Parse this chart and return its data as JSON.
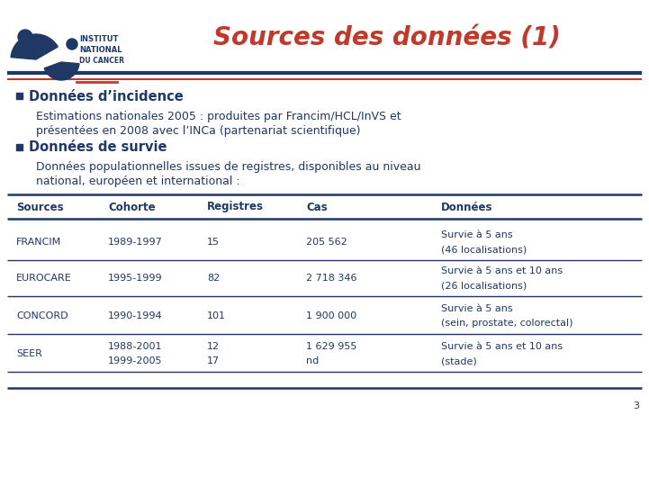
{
  "title": "Sources des données (1)",
  "title_color": "#C0392B",
  "title_fontsize": 20,
  "bg_color": "#FFFFFF",
  "header_line_color1": "#C0392B",
  "header_line_color2": "#1F3864",
  "bullet_color": "#1F3864",
  "bullet_head1": "Données d’incidence",
  "bullet_body1a": "Estimations nationales 2005 : produites par Francim/HCL/InVS et",
  "bullet_body1b": "présentées en 2008 avec l’INCa (partenariat scientifique)",
  "bullet_head2": "Données de survie",
  "bullet_body2a": "Données populationnelles issues de registres, disponibles au niveau",
  "bullet_body2b": "national, européen et international :",
  "table_header": [
    "Sources",
    "Cohorte",
    "Registres",
    "Cas",
    "Données"
  ],
  "table_rows": [
    [
      "FRANCIM",
      "1989-1997",
      "15",
      "205 562",
      "Survie à 5 ans\n(46 localisations)"
    ],
    [
      "EUROCARE",
      "1995-1999",
      "82",
      "2 718 346",
      "Survie à 5 ans et 10 ans\n(26 localisations)"
    ],
    [
      "CONCORD",
      "1990-1994",
      "101",
      "1 900 000",
      "Survie à 5 ans\n(sein, prostate, colorectal)"
    ],
    [
      "SEER",
      "1988-2001\n1999-2005",
      "12\n17",
      "1 629 955\nnd",
      "Survie à 5 ans et 10 ans\n(stade)"
    ]
  ],
  "table_header_color": "#1F3864",
  "table_text_color": "#1F3864",
  "table_line_color": "#1F3864",
  "logo_dark_blue": "#1F3864",
  "logo_red": "#C0392B",
  "page_number": "3"
}
